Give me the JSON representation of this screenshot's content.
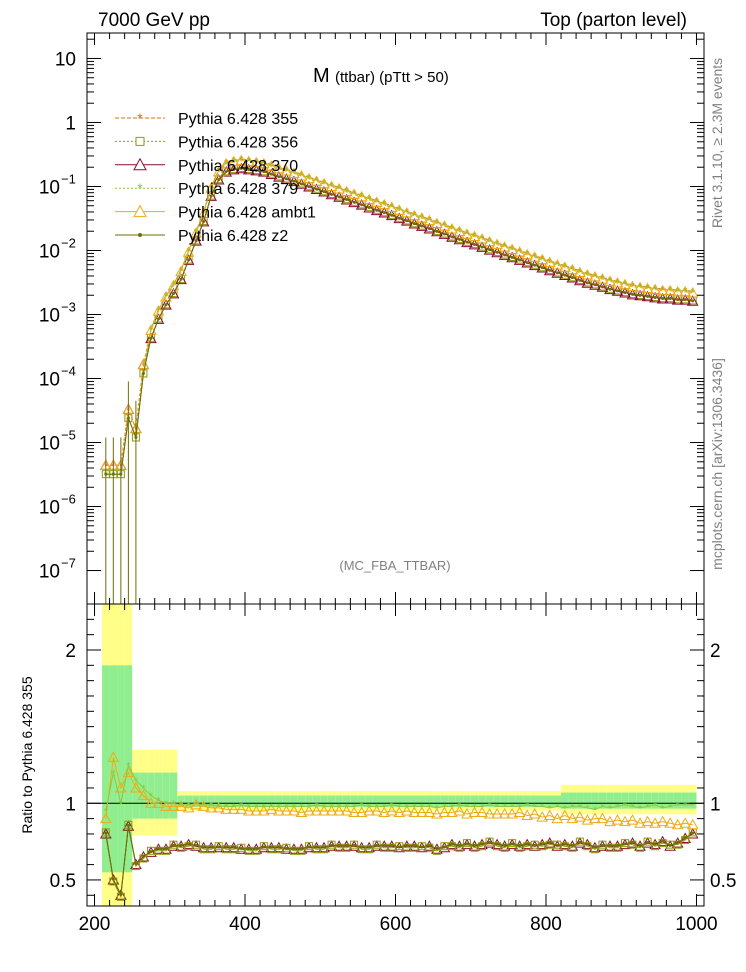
{
  "header": {
    "left": "7000 GeV pp",
    "right": "Top (parton level)"
  },
  "side_text": {
    "rivet": "Rivet 3.1.10, ≥ 2.3M events",
    "mcplots": "mcplots.cern.ch [arXiv:1306.3436]"
  },
  "plot_title": {
    "main": "M",
    "sub": "(ttbar) (pTtt > 50)"
  },
  "analysis_tag": "(MC_FBA_TTBAR)",
  "ratio_ylabel": "Ratio to Pythia 6.428 355",
  "legend": [
    {
      "label": "Pythia 6.428 355",
      "color": "#e86e0a",
      "marker": "star"
    },
    {
      "label": "Pythia 6.428 356",
      "color": "#8c9c0a",
      "marker": "square"
    },
    {
      "label": "Pythia 6.428 370",
      "color": "#8c0a2a",
      "marker": "triangle"
    },
    {
      "label": "Pythia 6.428 379",
      "color": "#8cc83c",
      "marker": "star"
    },
    {
      "label": "Pythia 6.428 ambt1",
      "color": "#f0aa14",
      "marker": "triangle"
    },
    {
      "label": "Pythia 6.428 z2",
      "color": "#6e6e0a",
      "marker": "dot"
    }
  ],
  "chart_data": [
    {
      "type": "line",
      "log_y": true,
      "xlim": [
        190,
        1010
      ],
      "ylim": [
        3e-08,
        25
      ],
      "y_ticks": [
        {
          "v": 1e-07,
          "base": "10",
          "exp": "−7"
        },
        {
          "v": 1e-06,
          "base": "10",
          "exp": "−6"
        },
        {
          "v": 1e-05,
          "base": "10",
          "exp": "−5"
        },
        {
          "v": 0.0001,
          "base": "10",
          "exp": "−4"
        },
        {
          "v": 0.001,
          "base": "10",
          "exp": "−3"
        },
        {
          "v": 0.01,
          "base": "10",
          "exp": "−2"
        },
        {
          "v": 0.1,
          "base": "10",
          "exp": "−1"
        },
        {
          "v": 1,
          "base": "1",
          "exp": ""
        },
        {
          "v": 10,
          "base": "10",
          "exp": ""
        }
      ],
      "reference_x": [
        215,
        225,
        235,
        245,
        255,
        265,
        275,
        285,
        295,
        305,
        315,
        325,
        335,
        345,
        355,
        365,
        375,
        385,
        395,
        405,
        415,
        425,
        435,
        445,
        455,
        465,
        475,
        485,
        495,
        505,
        515,
        525,
        535,
        545,
        555,
        565,
        575,
        585,
        595,
        605,
        615,
        625,
        635,
        645,
        655,
        665,
        675,
        685,
        695,
        705,
        715,
        725,
        735,
        745,
        755,
        765,
        775,
        785,
        795,
        805,
        815,
        825,
        835,
        845,
        855,
        865,
        875,
        885,
        895,
        905,
        915,
        925,
        935,
        945,
        955,
        965,
        975,
        985,
        995
      ],
      "reference_y": [
        4e-06,
        4e-06,
        4e-06,
        3e-05,
        1.5e-05,
        0.00015,
        0.0006,
        0.0012,
        0.002,
        0.003,
        0.005,
        0.01,
        0.02,
        0.04,
        0.1,
        0.18,
        0.24,
        0.26,
        0.27,
        0.26,
        0.25,
        0.24,
        0.22,
        0.2,
        0.185,
        0.17,
        0.155,
        0.14,
        0.128,
        0.117,
        0.106,
        0.097,
        0.088,
        0.08,
        0.073,
        0.066,
        0.06,
        0.055,
        0.05,
        0.045,
        0.041,
        0.037,
        0.034,
        0.031,
        0.028,
        0.0255,
        0.023,
        0.021,
        0.019,
        0.0175,
        0.016,
        0.0145,
        0.0132,
        0.012,
        0.011,
        0.01,
        0.0091,
        0.0083,
        0.0076,
        0.0069,
        0.0063,
        0.0058,
        0.0053,
        0.0048,
        0.0044,
        0.0041,
        0.0038,
        0.0035,
        0.0033,
        0.0031,
        0.0029,
        0.0028,
        0.0027,
        0.0026,
        0.0025,
        0.0025,
        0.0024,
        0.0024,
        0.0023
      ]
    },
    {
      "type": "line",
      "xlim": [
        190,
        1010
      ],
      "ylim": [
        0.33,
        2.3
      ],
      "x_ticks": [
        200,
        400,
        600,
        800,
        1000
      ],
      "y_ticks": [
        0.5,
        1,
        2
      ],
      "ylabel": "Ratio to Pythia 6.428 355",
      "ratio_low": {
        "label": "Pythia 6.428 370",
        "values": [
          0.8,
          0.5,
          0.4,
          0.85,
          0.6,
          0.65,
          0.68,
          0.7,
          0.7,
          0.72,
          0.72,
          0.73,
          0.72,
          0.71,
          0.71,
          0.71,
          0.71,
          0.71,
          0.7,
          0.7,
          0.7,
          0.71,
          0.71,
          0.71,
          0.7,
          0.7,
          0.7,
          0.71,
          0.71,
          0.71,
          0.72,
          0.72,
          0.72,
          0.72,
          0.71,
          0.71,
          0.72,
          0.72,
          0.72,
          0.71,
          0.72,
          0.72,
          0.71,
          0.72,
          0.7,
          0.71,
          0.73,
          0.72,
          0.73,
          0.72,
          0.73,
          0.74,
          0.73,
          0.72,
          0.73,
          0.72,
          0.73,
          0.72,
          0.73,
          0.74,
          0.72,
          0.73,
          0.72,
          0.74,
          0.73,
          0.71,
          0.72,
          0.72,
          0.72,
          0.73,
          0.74,
          0.72,
          0.74,
          0.73,
          0.75,
          0.72,
          0.74,
          0.77,
          0.8
        ]
      },
      "ratio_mid": {
        "label": "Pythia 6.428 ambt1",
        "values": [
          0.9,
          1.3,
          1.1,
          1.2,
          1.1,
          1.05,
          1.0,
          1.0,
          0.98,
          0.98,
          0.98,
          0.97,
          0.99,
          0.98,
          0.97,
          0.97,
          0.96,
          0.96,
          0.96,
          0.95,
          0.95,
          0.95,
          0.96,
          0.95,
          0.95,
          0.95,
          0.94,
          0.95,
          0.95,
          0.95,
          0.95,
          0.95,
          0.95,
          0.94,
          0.94,
          0.95,
          0.95,
          0.94,
          0.95,
          0.94,
          0.95,
          0.94,
          0.94,
          0.94,
          0.93,
          0.94,
          0.94,
          0.95,
          0.93,
          0.94,
          0.94,
          0.93,
          0.93,
          0.93,
          0.93,
          0.94,
          0.92,
          0.93,
          0.91,
          0.92,
          0.9,
          0.92,
          0.9,
          0.91,
          0.89,
          0.9,
          0.9,
          0.88,
          0.89,
          0.88,
          0.89,
          0.87,
          0.88,
          0.87,
          0.88,
          0.87,
          0.86,
          0.87,
          0.86
        ]
      },
      "ratio_high": {
        "label": "Pythia 6.428 379",
        "values": [
          0.95,
          1.2,
          1.0,
          1.25,
          1.15,
          1.1,
          1.05,
          1.02,
          1.0,
          1.0,
          0.99,
          0.99,
          1.0,
          0.99,
          0.99,
          0.98,
          0.98,
          0.98,
          0.99,
          0.98,
          0.98,
          0.98,
          0.98,
          0.98,
          0.98,
          0.98,
          0.98,
          0.98,
          0.99,
          0.98,
          0.98,
          0.98,
          0.98,
          0.98,
          0.99,
          0.98,
          0.98,
          0.98,
          0.99,
          0.98,
          0.98,
          0.98,
          0.98,
          0.98,
          0.97,
          0.98,
          0.98,
          0.99,
          0.98,
          0.98,
          0.98,
          0.99,
          0.98,
          0.98,
          0.98,
          0.98,
          0.99,
          0.98,
          0.98,
          0.97,
          0.98,
          0.97,
          0.98,
          0.98,
          0.97,
          0.96,
          0.98,
          0.97,
          0.98,
          0.99,
          0.98,
          0.97,
          0.98,
          0.99,
          0.97,
          0.98,
          0.99,
          0.99,
          0.99
        ]
      }
    }
  ]
}
